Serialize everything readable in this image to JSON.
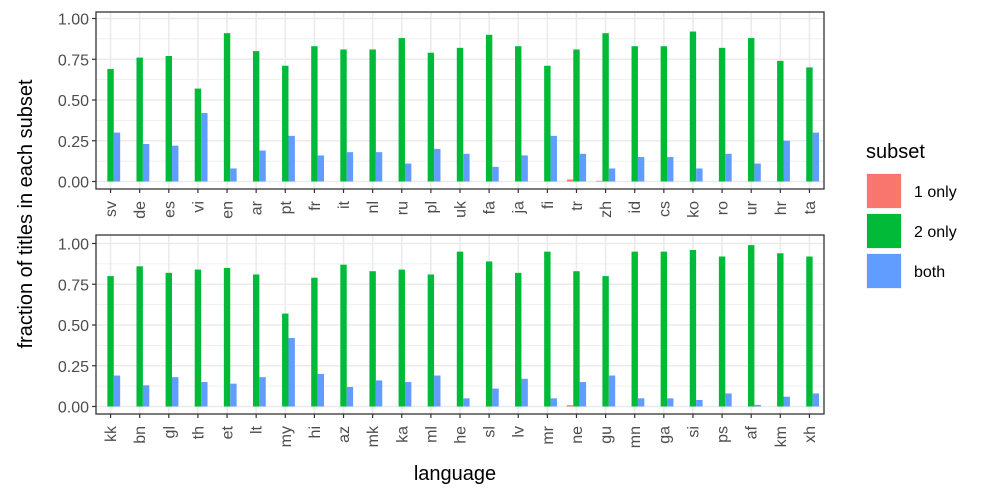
{
  "chart_data": {
    "type": "bar",
    "ylabel": "fraction of titles in each subset",
    "xlabel": "language",
    "legend": {
      "title": "subset",
      "position": "right",
      "entries": [
        {
          "name": "1 only",
          "color": "#F8766D"
        },
        {
          "name": "2 only",
          "color": "#00BA38"
        },
        {
          "name": "both",
          "color": "#619CFF"
        }
      ]
    },
    "ylim": [
      0,
      1
    ],
    "yticks": [
      "0.00",
      "0.25",
      "0.50",
      "0.75",
      "1.00"
    ],
    "grid": true,
    "panels": [
      {
        "categories": [
          "sv",
          "de",
          "es",
          "vi",
          "en",
          "ar",
          "pt",
          "fr",
          "it",
          "nl",
          "ru",
          "pl",
          "uk",
          "fa",
          "ja",
          "fi",
          "tr",
          "zh",
          "id",
          "cs",
          "ko",
          "ro",
          "ur",
          "hr",
          "ta"
        ],
        "series": [
          {
            "name": "1 only",
            "values": [
              0,
              0,
              0,
              0,
              0,
              0,
              0,
              0,
              0,
              0,
              0,
              0,
              0,
              0,
              0,
              0,
              0.012,
              0.004,
              0,
              0,
              0,
              0,
              0,
              0,
              0
            ]
          },
          {
            "name": "2 only",
            "values": [
              0.69,
              0.76,
              0.77,
              0.57,
              0.91,
              0.8,
              0.71,
              0.83,
              0.81,
              0.81,
              0.88,
              0.79,
              0.82,
              0.9,
              0.83,
              0.71,
              0.81,
              0.91,
              0.83,
              0.83,
              0.92,
              0.82,
              0.88,
              0.74,
              0.7
            ]
          },
          {
            "name": "both",
            "values": [
              0.3,
              0.23,
              0.22,
              0.42,
              0.08,
              0.19,
              0.28,
              0.16,
              0.18,
              0.18,
              0.11,
              0.2,
              0.17,
              0.09,
              0.16,
              0.28,
              0.17,
              0.08,
              0.15,
              0.15,
              0.08,
              0.17,
              0.11,
              0.25,
              0.3
            ]
          }
        ]
      },
      {
        "categories": [
          "kk",
          "bn",
          "gl",
          "th",
          "et",
          "lt",
          "my",
          "hi",
          "az",
          "mk",
          "ka",
          "ml",
          "he",
          "sl",
          "lv",
          "mr",
          "ne",
          "gu",
          "mn",
          "ga",
          "si",
          "ps",
          "af",
          "km",
          "xh"
        ],
        "series": [
          {
            "name": "1 only",
            "values": [
              0,
              0,
              0,
              0,
              0,
              0,
              0,
              0,
              0,
              0,
              0,
              0,
              0,
              0,
              0,
              0,
              0.008,
              0,
              0,
              0,
              0,
              0,
              0,
              0,
              0
            ]
          },
          {
            "name": "2 only",
            "values": [
              0.8,
              0.86,
              0.82,
              0.84,
              0.85,
              0.81,
              0.57,
              0.79,
              0.87,
              0.83,
              0.84,
              0.81,
              0.95,
              0.89,
              0.82,
              0.95,
              0.83,
              0.8,
              0.95,
              0.95,
              0.96,
              0.92,
              0.99,
              0.94,
              0.92
            ]
          },
          {
            "name": "both",
            "values": [
              0.19,
              0.13,
              0.18,
              0.15,
              0.14,
              0.18,
              0.42,
              0.2,
              0.12,
              0.16,
              0.15,
              0.19,
              0.05,
              0.11,
              0.17,
              0.05,
              0.15,
              0.19,
              0.05,
              0.05,
              0.04,
              0.08,
              0.01,
              0.06,
              0.08
            ]
          }
        ]
      }
    ]
  }
}
